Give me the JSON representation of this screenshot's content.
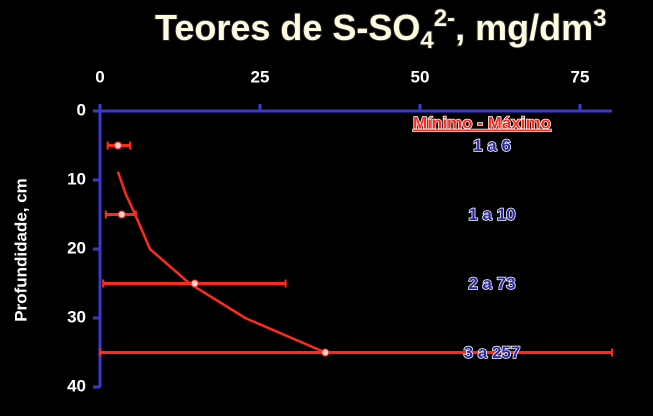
{
  "chart_data": {
    "type": "range",
    "title": [
      "Teores de S-SO",
      "4",
      "2-",
      ", mg/dm",
      "3"
    ],
    "ylabel": "Profundidade, cm",
    "xlim": [
      0,
      80
    ],
    "xticks": [
      0,
      25,
      50,
      75
    ],
    "ylim": [
      0,
      40
    ],
    "yticks": [
      0,
      10,
      20,
      30,
      40
    ],
    "range_header": "Mínimo - Máximo",
    "depths": [
      5,
      15,
      25,
      35
    ],
    "min": [
      1.2,
      0.9,
      0.5,
      0
    ],
    "max": [
      4.7,
      5.6,
      29,
      80
    ],
    "mean": [
      2.8,
      3.4,
      14.8,
      35.2
    ],
    "range_labels": [
      "1 a 6",
      "1 a 10",
      "2 a 73",
      "3 a 257"
    ],
    "curve": {
      "x": [
        2.8,
        4,
        5.5,
        7.8,
        14,
        22.7,
        35.2
      ],
      "y": [
        8.8,
        12,
        15,
        20,
        25,
        30,
        35
      ]
    },
    "color": "#ff2a1a",
    "axis_color": "#3a3acc",
    "label_color": "#2a2aa8"
  }
}
